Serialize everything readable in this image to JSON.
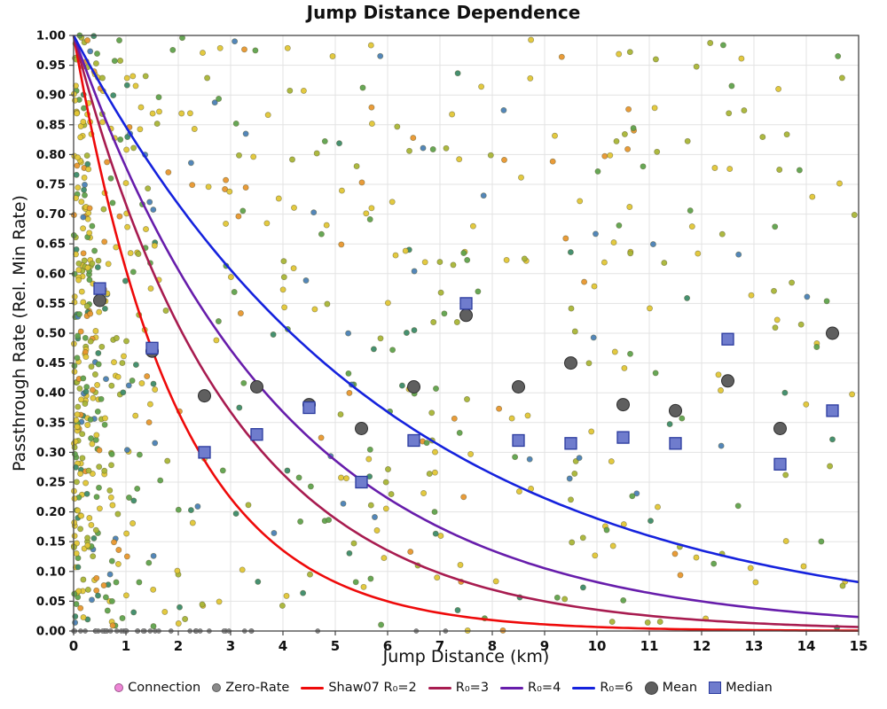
{
  "chart_data": {
    "type": "scatter",
    "title": "Jump Distance Dependence",
    "xlabel": "Jump Distance (km)",
    "ylabel": "Passthrough Rate (Rel. Min Rate)",
    "xlim": [
      0,
      15
    ],
    "ylim": [
      0,
      1
    ],
    "xticks": [
      0,
      1,
      2,
      3,
      4,
      5,
      6,
      7,
      8,
      9,
      10,
      11,
      12,
      13,
      14,
      15
    ],
    "yticks": [
      0,
      0.05,
      0.1,
      0.15,
      0.2,
      0.25,
      0.3,
      0.35,
      0.4,
      0.45,
      0.5,
      0.55,
      0.6,
      0.65,
      0.7,
      0.75,
      0.8,
      0.85,
      0.9,
      0.95,
      1
    ],
    "grid": true,
    "legend_position": "bottom",
    "curves": [
      {
        "name": "Shaw07 R₀=2",
        "R0": 2,
        "color": "#ee0a0a",
        "formula": "y = exp(-x/R0)"
      },
      {
        "name": "R₀=3",
        "R0": 3,
        "color": "#a81c50",
        "formula": "y = exp(-x/R0)"
      },
      {
        "name": "R₀=4",
        "R0": 4,
        "color": "#671dab",
        "formula": "y = exp(-x/R0)"
      },
      {
        "name": "R₀=6",
        "R0": 6,
        "color": "#1522dd",
        "formula": "y = exp(-x/R0)"
      }
    ],
    "mean": {
      "name": "Mean",
      "color": "#5f5f5f",
      "edge": "#2e2e2e",
      "x": [
        0.5,
        1.5,
        2.5,
        3.5,
        4.5,
        5.5,
        6.5,
        7.5,
        8.5,
        9.5,
        10.5,
        11.5,
        12.5,
        13.5,
        14.5
      ],
      "y": [
        0.555,
        0.47,
        0.395,
        0.41,
        0.38,
        0.34,
        0.41,
        0.53,
        0.41,
        0.45,
        0.38,
        0.37,
        0.42,
        0.34,
        0.5
      ]
    },
    "median": {
      "name": "Median",
      "color": "#6f7ccd",
      "edge": "#2a3a9e",
      "x": [
        0.5,
        1.5,
        2.5,
        3.5,
        4.5,
        5.5,
        6.5,
        7.5,
        8.5,
        9.5,
        10.5,
        11.5,
        12.5,
        13.5,
        14.5
      ],
      "y": [
        0.575,
        0.475,
        0.3,
        0.33,
        0.375,
        0.25,
        0.32,
        0.55,
        0.32,
        0.315,
        0.325,
        0.315,
        0.49,
        0.28,
        0.37
      ]
    },
    "scatter": {
      "name": "Connection",
      "seed": 1337,
      "n_cluster": 330,
      "cluster_scale": 0.4,
      "n_uniform": 400,
      "point_radius": 3.1,
      "colors": [
        {
          "c": "#e2c636",
          "w": 0.33
        },
        {
          "c": "#a9b537",
          "w": 0.2
        },
        {
          "c": "#5fa24d",
          "w": 0.2
        },
        {
          "c": "#3c8a69",
          "w": 0.09
        },
        {
          "c": "#e8962e",
          "w": 0.1
        },
        {
          "c": "#4a7fb5",
          "w": 0.08
        }
      ]
    },
    "zero_rate": {
      "name": "Zero-Rate",
      "color": "#8a8a8a",
      "seed": 99,
      "n": 42,
      "scale": 2.0,
      "x_max": 8
    },
    "legend": [
      {
        "label": "Connection",
        "type": "dot",
        "color": "#ee85d6",
        "size": 8
      },
      {
        "label": "Zero-Rate",
        "type": "dot",
        "color": "#8a8a8a",
        "size": 8
      },
      {
        "label": "Shaw07 R₀=2",
        "type": "line",
        "color": "#ee0a0a"
      },
      {
        "label": "R₀=3",
        "type": "line",
        "color": "#a81c50"
      },
      {
        "label": "R₀=4",
        "type": "line",
        "color": "#671dab"
      },
      {
        "label": "R₀=6",
        "type": "line",
        "color": "#1522dd"
      },
      {
        "label": "Mean",
        "type": "dot",
        "color": "#5f5f5f",
        "size": 13
      },
      {
        "label": "Median",
        "type": "square",
        "color": "#6f7ccd",
        "size": 12
      }
    ]
  }
}
